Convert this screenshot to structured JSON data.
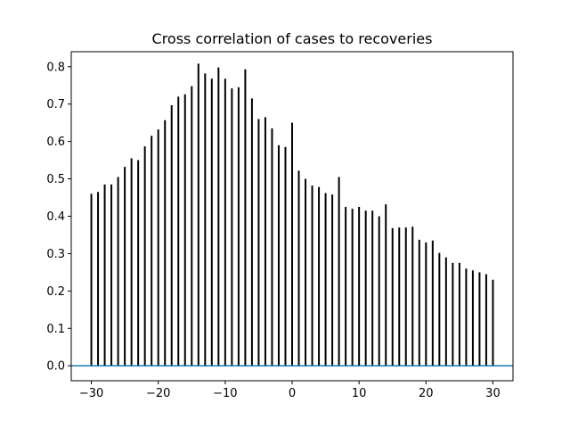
{
  "chart_data": {
    "type": "bar",
    "title": "Cross correlation of cases to recoveries",
    "xlabel": "",
    "ylabel": "",
    "xlim": [
      -33,
      33
    ],
    "ylim": [
      -0.04,
      0.84
    ],
    "grid": false,
    "x_ticks": [
      -30,
      -20,
      -10,
      0,
      10,
      20,
      30
    ],
    "y_ticks": [
      0.0,
      0.1,
      0.2,
      0.3,
      0.4,
      0.5,
      0.6,
      0.7,
      0.8
    ],
    "x_tick_labels": [
      "−30",
      "−20",
      "−10",
      "0",
      "10",
      "20",
      "30"
    ],
    "y_tick_labels": [
      "0.0",
      "0.1",
      "0.2",
      "0.3",
      "0.4",
      "0.5",
      "0.6",
      "0.7",
      "0.8"
    ],
    "lags": [
      -30,
      -29,
      -28,
      -27,
      -26,
      -25,
      -24,
      -23,
      -22,
      -21,
      -20,
      -19,
      -18,
      -17,
      -16,
      -15,
      -14,
      -13,
      -12,
      -11,
      -10,
      -9,
      -8,
      -7,
      -6,
      -5,
      -4,
      -3,
      -2,
      -1,
      0,
      1,
      2,
      3,
      4,
      5,
      6,
      7,
      8,
      9,
      10,
      11,
      12,
      13,
      14,
      15,
      16,
      17,
      18,
      19,
      20,
      21,
      22,
      23,
      24,
      25,
      26,
      27,
      28,
      29,
      30
    ],
    "values": [
      0.46,
      0.465,
      0.485,
      0.485,
      0.505,
      0.532,
      0.555,
      0.55,
      0.587,
      0.615,
      0.632,
      0.657,
      0.697,
      0.72,
      0.726,
      0.748,
      0.808,
      0.782,
      0.768,
      0.798,
      0.768,
      0.742,
      0.745,
      0.793,
      0.715,
      0.66,
      0.665,
      0.635,
      0.59,
      0.585,
      0.65,
      0.522,
      0.5,
      0.482,
      0.478,
      0.462,
      0.458,
      0.505,
      0.425,
      0.42,
      0.425,
      0.415,
      0.415,
      0.4,
      0.432,
      0.368,
      0.37,
      0.37,
      0.372,
      0.337,
      0.33,
      0.335,
      0.302,
      0.29,
      0.275,
      0.275,
      0.26,
      0.255,
      0.25,
      0.245,
      0.23
    ],
    "baseline_value": 0.0,
    "stem_color": "#000000",
    "baseline_color": "#1f77b4"
  }
}
